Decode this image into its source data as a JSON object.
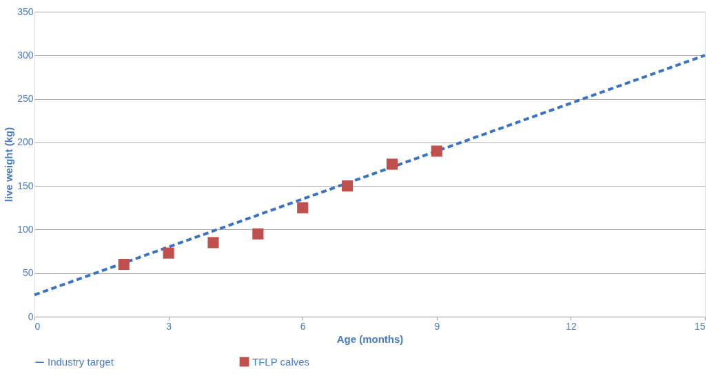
{
  "chart_data": {
    "type": "scatter",
    "xlabel": "Age (months)",
    "ylabel": "live weight (kg)",
    "xlim": [
      0,
      15
    ],
    "xticks": [
      0,
      3,
      6,
      9,
      12,
      15
    ],
    "ylim": [
      0,
      350
    ],
    "yticks": [
      0,
      50,
      100,
      150,
      200,
      250,
      300,
      350
    ],
    "grid": "y",
    "legend": "bottom",
    "series": [
      {
        "name": "Industry target",
        "type": "line",
        "color": "#3b73c4",
        "line_style": "dashed",
        "marker": "none",
        "x": [
          0,
          15
        ],
        "values": [
          25,
          300
        ]
      },
      {
        "name": "TFLP calves",
        "type": "scatter",
        "color": "#c0504d",
        "marker": "square",
        "x": [
          2,
          3,
          4,
          5,
          6,
          7,
          8,
          9
        ],
        "values": [
          60,
          73,
          85,
          95,
          125,
          150,
          175,
          190
        ]
      }
    ]
  }
}
